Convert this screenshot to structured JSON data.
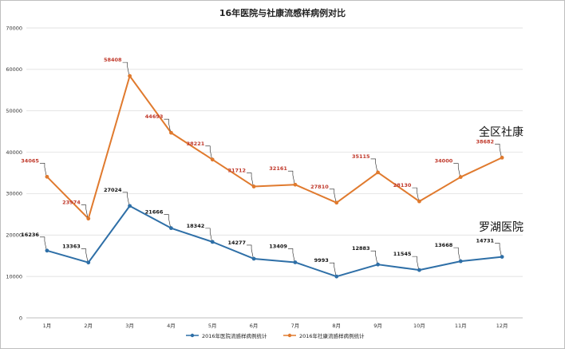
{
  "chart_data": {
    "type": "line",
    "title": "16年医院与社康流感样病例对比",
    "categories": [
      "1月",
      "2月",
      "3月",
      "4月",
      "5月",
      "6月",
      "7月",
      "8月",
      "9月",
      "10月",
      "11月",
      "12月"
    ],
    "y_ticks": [
      "0",
      "10000",
      "20000",
      "30000",
      "40000",
      "50000",
      "60000",
      "70000"
    ],
    "ylim": [
      0,
      70000
    ],
    "grid": true,
    "legend_position": "bottom",
    "series": [
      {
        "name": "2016年医院流感样病例统计",
        "color": "#2e6fa7",
        "values": [
          16236,
          13363,
          27024,
          21666,
          18342,
          14277,
          13409,
          9993,
          12883,
          11545,
          13668,
          14731
        ],
        "label_color": "#111111"
      },
      {
        "name": "2016年社康流感样病例统计",
        "color": "#e07a2e",
        "values": [
          34065,
          23974,
          58408,
          44693,
          38221,
          31712,
          32161,
          27810,
          35115,
          28130,
          34000,
          38682
        ],
        "label_color": "#c0392b"
      }
    ],
    "annotations": [
      "全区社康",
      "罗湖医院"
    ]
  }
}
